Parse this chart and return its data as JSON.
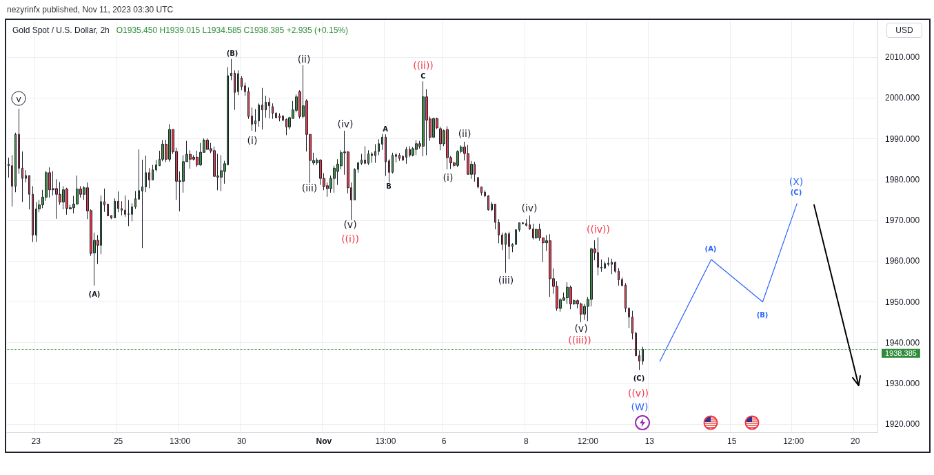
{
  "chart_data": {
    "type": "candlestick",
    "title": "Gold Spot / U.S. Dollar, 2h",
    "subtitle": "O1935.450 H1939.015 L1934.585 C1938.385 +2.935 (+0.15%)",
    "ylabel": "USD",
    "categories": [
      null,
      null,
      null,
      null,
      null,
      null,
      null,
      null,
      "23",
      null,
      null,
      null,
      null,
      null,
      null,
      null,
      null,
      null,
      null,
      null,
      null,
      null,
      null,
      null,
      null,
      null,
      null,
      null,
      null,
      null,
      null,
      null,
      "25",
      null,
      null,
      null,
      null,
      null,
      null,
      null,
      null,
      null,
      null,
      null,
      null,
      null,
      null,
      null,
      null,
      null,
      "13:00",
      null,
      null,
      null,
      null,
      null,
      null,
      null,
      null,
      null,
      null,
      null,
      null,
      null,
      null,
      null,
      null,
      null,
      "30",
      null,
      null,
      null,
      null,
      null,
      null,
      null,
      null,
      null,
      null,
      null,
      null,
      null,
      null,
      null,
      null,
      null,
      null,
      null,
      null,
      null,
      null,
      null,
      "Nov",
      null,
      null,
      null,
      null,
      null,
      null,
      null,
      null,
      null,
      null,
      null,
      null,
      null,
      null,
      null,
      null,
      null,
      "13:00",
      null,
      null,
      null,
      null,
      null,
      null,
      null,
      null,
      null,
      null,
      null,
      null,
      null,
      null,
      null,
      null,
      "6",
      null,
      null,
      null,
      null,
      null,
      null,
      null,
      null,
      null,
      null,
      null,
      null,
      null,
      null,
      null,
      null,
      null,
      null,
      null,
      null,
      null,
      null,
      null,
      "8",
      null,
      null,
      null,
      null,
      null,
      null,
      null,
      null,
      null,
      null,
      null,
      null,
      null,
      null,
      null,
      null,
      null,
      "12:00",
      null,
      null,
      null,
      null,
      null,
      null,
      null,
      null,
      null,
      null,
      null,
      null,
      null,
      null,
      null,
      null,
      null,
      "13",
      null,
      null,
      null,
      null,
      null,
      null,
      null,
      null,
      null,
      null,
      null,
      null,
      null,
      null,
      null,
      null,
      null,
      null,
      null,
      null,
      null,
      null,
      null,
      "15",
      null,
      null,
      null,
      null,
      null,
      null,
      null,
      null,
      null,
      null,
      null,
      null,
      null,
      null,
      null,
      null,
      null,
      "12:00",
      null,
      null,
      null,
      null,
      null,
      null,
      null,
      null,
      null,
      null,
      null,
      null,
      null,
      null,
      null,
      null,
      null,
      "20",
      null,
      null,
      null,
      null,
      null,
      null
    ],
    "ohlc": [
      [
        1983.8,
        1985.4,
        1980.5,
        1983.4
      ],
      [
        1983.4,
        1986.0,
        1973.4,
        1978.4
      ],
      [
        1978.4,
        1991.5,
        1976.9,
        1991.1
      ],
      [
        1991.1,
        1997.4,
        1981.4,
        1982.8
      ],
      [
        1982.8,
        1986.9,
        1974.5,
        1980.3
      ],
      [
        1980.3,
        1982.3,
        1979.3,
        1981.0
      ],
      [
        1981.0,
        1981.0,
        1972.7,
        1976.4
      ],
      [
        1976.4,
        1978.4,
        1964.7,
        1966.4
      ],
      [
        1966.4,
        1974.5,
        1964.7,
        1972.8
      ],
      [
        1972.8,
        1975.0,
        1972.0,
        1973.8
      ],
      [
        1973.8,
        1977.5,
        1973.0,
        1975.7
      ],
      [
        1975.7,
        1982.1,
        1974.8,
        1981.7
      ],
      [
        1981.7,
        1983.0,
        1975.6,
        1977.5
      ],
      [
        1977.8,
        1982.1,
        1976.1,
        1977.5
      ],
      [
        1977.8,
        1980.1,
        1970.4,
        1976.4
      ],
      [
        1976.4,
        1979.4,
        1973.8,
        1974.5
      ],
      [
        1974.5,
        1978.4,
        1972.7,
        1977.5
      ],
      [
        1977.7,
        1978.0,
        1971.4,
        1972.9
      ],
      [
        1972.8,
        1973.8,
        1972.7,
        1973.1
      ],
      [
        1973.1,
        1976.0,
        1971.7,
        1974.0
      ],
      [
        1974.0,
        1981.0,
        1974.0,
        1977.7
      ],
      [
        1977.7,
        1978.4,
        1975.6,
        1976.4
      ],
      [
        1976.4,
        1978.4,
        1975.0,
        1978.0
      ],
      [
        1978.0,
        1979.3,
        1970.3,
        1972.3
      ],
      [
        1972.4,
        1972.7,
        1961.3,
        1961.9
      ],
      [
        1962.0,
        1967.0,
        1954.0,
        1965.1
      ],
      [
        1965.1,
        1966.4,
        1959.3,
        1963.9
      ],
      [
        1963.9,
        1976.1,
        1961.7,
        1974.6
      ],
      [
        1974.6,
        1977.8,
        1972.1,
        1973.8
      ],
      [
        1974.0,
        1974.0,
        1971.1,
        1971.1
      ],
      [
        1971.2,
        1971.2,
        1970.3,
        1970.6
      ],
      [
        1970.6,
        1975.4,
        1970.6,
        1974.7
      ],
      [
        1974.7,
        1977.1,
        1972.0,
        1972.9
      ],
      [
        1972.9,
        1974.7,
        1971.2,
        1972.5
      ],
      [
        1972.5,
        1976.1,
        1970.9,
        1971.5
      ],
      [
        1971.6,
        1975.0,
        1968.6,
        1971.5
      ],
      [
        1971.5,
        1974.2,
        1969.8,
        1973.3
      ],
      [
        1973.3,
        1977.2,
        1972.8,
        1975.3
      ],
      [
        1975.2,
        1987.4,
        1975.2,
        1977.3
      ],
      [
        1977.2,
        1984.9,
        1963.2,
        1978.2
      ],
      [
        1978.2,
        1985.9,
        1976.9,
        1981.7
      ],
      [
        1981.7,
        1982.8,
        1977.9,
        1979.9
      ],
      [
        1979.9,
        1983.6,
        1979.9,
        1982.4
      ],
      [
        1982.4,
        1984.8,
        1982.0,
        1983.6
      ],
      [
        1983.4,
        1987.1,
        1983.4,
        1985.0
      ],
      [
        1985.0,
        1989.7,
        1984.5,
        1988.7
      ],
      [
        1988.7,
        1989.8,
        1984.3,
        1985.0
      ],
      [
        1985.0,
        1993.6,
        1984.4,
        1992.3
      ],
      [
        1992.3,
        1992.3,
        1986.3,
        1986.8
      ],
      [
        1986.9,
        1987.8,
        1975.0,
        1979.6
      ],
      [
        1979.7,
        1982.0,
        1972.2,
        1979.5
      ],
      [
        1979.6,
        1986.0,
        1976.8,
        1984.4
      ],
      [
        1984.4,
        1989.5,
        1984.4,
        1986.2
      ],
      [
        1986.2,
        1987.2,
        1982.7,
        1985.0
      ],
      [
        1985.5,
        1986.0,
        1984.7,
        1985.0
      ],
      [
        1985.5,
        1987.1,
        1983.1,
        1983.6
      ],
      [
        1983.6,
        1989.0,
        1983.4,
        1986.7
      ],
      [
        1986.7,
        1990.1,
        1986.6,
        1989.7
      ],
      [
        1989.7,
        1990.1,
        1987.4,
        1987.4
      ],
      [
        1987.6,
        1989.0,
        1986.5,
        1987.0
      ],
      [
        1987.1,
        1988.1,
        1980.8,
        1980.8
      ],
      [
        1980.9,
        1986.3,
        1977.4,
        1980.6
      ],
      [
        1980.6,
        1986.0,
        1977.2,
        1982.2
      ],
      [
        1982.0,
        1984.6,
        1979.0,
        1983.9
      ],
      [
        1983.6,
        2007.6,
        1983.6,
        2005.5
      ],
      [
        2005.5,
        2009.6,
        2004.4,
        2006.1
      ],
      [
        2006.1,
        2006.8,
        1997.1,
        2001.4
      ],
      [
        2001.6,
        2006.8,
        2000.7,
        2006.0
      ],
      [
        2004.9,
        2005.4,
        2001.9,
        2002.8
      ],
      [
        2003.0,
        2003.8,
        2000.6,
        2001.6
      ],
      [
        2001.6,
        2002.6,
        1994.9,
        1995.5
      ],
      [
        1995.6,
        1997.7,
        1992.0,
        1993.6
      ],
      [
        1993.7,
        1997.3,
        1991.7,
        1994.4
      ],
      [
        1994.4,
        1998.7,
        1993.0,
        1998.3
      ],
      [
        1998.3,
        2002.5,
        1992.3,
        1997.1
      ],
      [
        1997.1,
        2000.6,
        1995.2,
        1999.0
      ],
      [
        1999.0,
        2000.1,
        1995.0,
        1998.1
      ],
      [
        1997.9,
        1998.7,
        1994.9,
        1996.3
      ],
      [
        1996.3,
        1996.5,
        1995.0,
        1995.2
      ],
      [
        1995.6,
        1996.3,
        1994.3,
        1995.2
      ],
      [
        1995.6,
        1995.8,
        1994.3,
        1994.6
      ],
      [
        1994.8,
        1995.0,
        1990.9,
        1992.9
      ],
      [
        1992.9,
        1995.4,
        1992.3,
        1995.2
      ],
      [
        1995.0,
        1999.3,
        1995.0,
        1997.1
      ],
      [
        1997.0,
        2000.9,
        1996.5,
        2000.3
      ],
      [
        2001.6,
        2001.9,
        1995.0,
        1995.5
      ],
      [
        1995.5,
        2008.1,
        1995.0,
        1998.1
      ],
      [
        1999.3,
        1999.7,
        1986.9,
        1991.1
      ],
      [
        1991.1,
        1991.1,
        1979.1,
        1984.7
      ],
      [
        1984.1,
        1986.6,
        1983.6,
        1984.7
      ],
      [
        1984.1,
        1985.3,
        1983.6,
        1984.8
      ],
      [
        1984.8,
        1985.0,
        1978.7,
        1980.3
      ],
      [
        1980.3,
        1981.6,
        1977.4,
        1978.3
      ],
      [
        1978.5,
        1979.3,
        1975.8,
        1977.8
      ],
      [
        1977.8,
        1981.0,
        1976.8,
        1980.3
      ],
      [
        1980.3,
        1983.4,
        1976.8,
        1982.8
      ],
      [
        1982.0,
        1985.0,
        1978.7,
        1983.8
      ],
      [
        1983.4,
        1987.2,
        1982.5,
        1986.6
      ],
      [
        1986.6,
        1992.0,
        1981.2,
        1986.8
      ],
      [
        1986.8,
        1987.0,
        1976.6,
        1978.0
      ],
      [
        1978.0,
        1979.3,
        1970.1,
        1975.0
      ],
      [
        1975.0,
        1982.8,
        1975.0,
        1982.5
      ],
      [
        1982.5,
        1984.4,
        1981.7,
        1984.1
      ],
      [
        1984.0,
        1986.3,
        1983.6,
        1984.8
      ],
      [
        1984.8,
        1988.2,
        1983.8,
        1984.0
      ],
      [
        1984.0,
        1987.2,
        1983.6,
        1986.3
      ],
      [
        1986.3,
        1986.7,
        1984.1,
        1985.9
      ],
      [
        1985.9,
        1988.7,
        1984.1,
        1986.9
      ],
      [
        1986.9,
        1989.9,
        1986.0,
        1988.8
      ],
      [
        1988.7,
        1991.2,
        1987.3,
        1990.4
      ],
      [
        1990.4,
        1991.1,
        1980.9,
        1984.4
      ],
      [
        1984.6,
        1985.0,
        1979.3,
        1981.8
      ],
      [
        1981.8,
        1986.6,
        1981.5,
        1986.0
      ],
      [
        1985.7,
        1986.5,
        1984.2,
        1986.1
      ],
      [
        1986.0,
        1986.5,
        1984.6,
        1985.2
      ],
      [
        1985.7,
        1986.0,
        1984.6,
        1984.8
      ],
      [
        1985.5,
        1988.0,
        1983.9,
        1987.4
      ],
      [
        1987.4,
        1988.2,
        1985.5,
        1986.0
      ],
      [
        1986.0,
        1988.0,
        1985.7,
        1987.6
      ],
      [
        1987.4,
        1989.7,
        1986.0,
        1988.8
      ],
      [
        1988.8,
        1989.5,
        1987.6,
        1988.2
      ],
      [
        1988.2,
        2004.1,
        1985.7,
        2000.3
      ],
      [
        2000.3,
        2002.2,
        1986.0,
        1994.6
      ],
      [
        1994.9,
        1995.5,
        1989.5,
        1990.4
      ],
      [
        1990.4,
        1995.2,
        1990.3,
        1995.0
      ],
      [
        1995.0,
        1995.2,
        1992.4,
        1992.7
      ],
      [
        1992.5,
        1993.0,
        1987.2,
        1988.8
      ],
      [
        1988.8,
        1992.3,
        1988.2,
        1992.0
      ],
      [
        1992.3,
        1993.1,
        1982.5,
        1985.4
      ],
      [
        1985.4,
        1985.8,
        1982.6,
        1984.1
      ],
      [
        1984.1,
        1984.4,
        1983.1,
        1983.5
      ],
      [
        1983.5,
        1987.2,
        1983.1,
        1986.9
      ],
      [
        1986.9,
        1988.4,
        1986.5,
        1988.0
      ],
      [
        1988.0,
        1989.3,
        1984.7,
        1986.4
      ],
      [
        1986.4,
        1988.5,
        1981.3,
        1981.3
      ],
      [
        1981.3,
        1984.6,
        1980.2,
        1983.8
      ],
      [
        1983.8,
        1984.4,
        1979.5,
        1981.3
      ],
      [
        1980.5,
        1980.6,
        1977.8,
        1978.2
      ],
      [
        1978.2,
        1978.2,
        1976.1,
        1976.8
      ],
      [
        1976.9,
        1977.4,
        1975.7,
        1976.0
      ],
      [
        1976.0,
        1976.2,
        1972.4,
        1972.6
      ],
      [
        1972.6,
        1974.5,
        1972.3,
        1974.0
      ],
      [
        1974.0,
        1974.0,
        1967.8,
        1969.5
      ],
      [
        1969.5,
        1970.3,
        1964.4,
        1966.4
      ],
      [
        1966.4,
        1967.0,
        1962.7,
        1964.1
      ],
      [
        1964.1,
        1967.0,
        1957.1,
        1966.7
      ],
      [
        1966.7,
        1967.2,
        1960.5,
        1963.6
      ],
      [
        1963.6,
        1964.4,
        1962.2,
        1964.1
      ],
      [
        1964.1,
        1967.8,
        1964.0,
        1967.7
      ],
      [
        1967.7,
        1969.5,
        1967.2,
        1969.4
      ],
      [
        1969.2,
        1969.6,
        1969.0,
        1969.4
      ],
      [
        1969.2,
        1970.3,
        1968.5,
        1968.8
      ],
      [
        1968.9,
        1971.2,
        1967.7,
        1967.9
      ],
      [
        1967.9,
        1969.2,
        1965.3,
        1965.7
      ],
      [
        1965.7,
        1967.9,
        1965.5,
        1967.8
      ],
      [
        1967.8,
        1969.2,
        1965.0,
        1965.7
      ],
      [
        1965.7,
        1965.7,
        1959.8,
        1964.5
      ],
      [
        1964.5,
        1966.4,
        1962.5,
        1965.0
      ],
      [
        1965.0,
        1966.6,
        1951.2,
        1955.7
      ],
      [
        1955.7,
        1958.2,
        1952.0,
        1953.8
      ],
      [
        1953.8,
        1955.1,
        1947.8,
        1948.4
      ],
      [
        1948.4,
        1950.9,
        1947.6,
        1950.5
      ],
      [
        1950.4,
        1952.3,
        1950.4,
        1951.0
      ],
      [
        1951.0,
        1954.8,
        1949.5,
        1953.6
      ],
      [
        1953.6,
        1954.0,
        1948.2,
        1949.5
      ],
      [
        1949.5,
        1950.6,
        1949.3,
        1950.3
      ],
      [
        1950.3,
        1950.6,
        1948.4,
        1949.5
      ],
      [
        1949.5,
        1949.8,
        1945.0,
        1947.0
      ],
      [
        1947.0,
        1949.5,
        1945.6,
        1948.9
      ],
      [
        1948.9,
        1951.2,
        1945.3,
        1950.6
      ],
      [
        1950.6,
        1963.3,
        1948.9,
        1963.0
      ],
      [
        1963.0,
        1965.1,
        1960.2,
        1962.1
      ],
      [
        1962.1,
        1965.8,
        1956.5,
        1958.5
      ],
      [
        1958.5,
        1960.4,
        1957.4,
        1958.3
      ],
      [
        1958.3,
        1959.9,
        1958.1,
        1959.4
      ],
      [
        1959.5,
        1960.9,
        1958.8,
        1959.2
      ],
      [
        1959.2,
        1960.6,
        1956.8,
        1959.7
      ],
      [
        1959.7,
        1959.9,
        1957.1,
        1957.5
      ],
      [
        1957.5,
        1958.3,
        1954.0,
        1955.4
      ],
      [
        1955.5,
        1956.0,
        1953.8,
        1954.0
      ],
      [
        1954.1,
        1954.6,
        1947.5,
        1948.4
      ],
      [
        1948.4,
        1948.7,
        1943.6,
        1946.3
      ],
      [
        1946.3,
        1947.8,
        1940.8,
        1942.3
      ],
      [
        1942.3,
        1942.7,
        1936.8,
        1936.8
      ],
      [
        1936.8,
        1938.1,
        1933.3,
        1935.5
      ],
      [
        1935.45,
        1939.015,
        1934.585,
        1938.385
      ],
      null,
      null,
      null,
      null,
      null,
      null,
      null,
      null,
      null,
      null,
      null,
      null,
      null,
      null,
      null,
      null,
      null,
      null,
      null,
      null,
      null,
      null,
      null,
      null,
      null,
      null,
      null,
      null,
      null,
      null,
      null,
      null,
      null,
      null,
      null,
      null,
      null,
      null,
      null,
      null,
      null,
      null,
      null,
      null,
      null,
      null,
      null,
      null,
      null,
      null,
      null,
      null,
      null,
      null,
      null,
      null,
      null,
      null,
      null,
      null,
      null,
      null,
      null,
      null,
      null,
      null,
      null,
      null
    ],
    "series": [
      {
        "type": "line",
        "color": "#2962ff",
        "values": [
          null,
          null,
          null,
          null,
          null,
          null,
          null,
          null,
          null,
          null,
          null,
          null,
          null,
          null,
          null,
          null,
          null,
          null,
          null,
          null,
          null,
          null,
          null,
          null,
          null,
          null,
          null,
          null,
          null,
          null,
          null,
          null,
          null,
          null,
          null,
          null,
          null,
          null,
          null,
          null,
          null,
          null,
          null,
          null,
          null,
          null,
          null,
          null,
          null,
          null,
          null,
          null,
          null,
          null,
          null,
          null,
          null,
          null,
          null,
          null,
          null,
          null,
          null,
          null,
          null,
          null,
          null,
          null,
          null,
          null,
          null,
          null,
          null,
          null,
          null,
          null,
          null,
          null,
          null,
          null,
          null,
          null,
          null,
          null,
          null,
          null,
          null,
          null,
          null,
          null,
          null,
          null,
          null,
          null,
          null,
          null,
          null,
          null,
          null,
          null,
          null,
          null,
          null,
          null,
          null,
          null,
          null,
          null,
          null,
          null,
          null,
          null,
          null,
          null,
          null,
          null,
          null,
          null,
          null,
          null,
          null,
          null,
          null,
          null,
          null,
          null,
          null,
          null,
          null,
          null,
          null,
          null,
          null,
          null,
          null,
          null,
          null,
          null,
          null,
          null,
          null,
          null,
          null,
          null,
          null,
          null,
          null,
          null,
          null,
          null,
          null,
          null,
          null,
          null,
          null,
          null,
          null,
          null,
          null,
          null,
          null,
          null,
          null,
          null,
          null,
          null,
          null,
          null,
          null,
          null,
          null,
          null,
          null,
          null,
          null,
          null,
          null,
          null,
          null,
          null,
          null,
          null,
          null,
          null,
          null,
          null,
          null,
          null,
          null,
          null,
          1935.4,
          null,
          null,
          null,
          null,
          null,
          null,
          null,
          null,
          null,
          null,
          null,
          null,
          null,
          null,
          1960.4,
          null,
          null,
          null,
          null,
          null,
          null,
          null,
          null,
          null,
          null,
          null,
          null,
          null,
          null,
          1950.0,
          null,
          null,
          null,
          null,
          null,
          null,
          null,
          null,
          null,
          1974.1,
          null,
          null,
          null,
          null,
          null,
          null,
          null,
          null,
          null,
          null,
          null,
          null,
          null,
          null,
          null,
          null,
          null,
          null,
          null,
          null,
          null,
          null,
          null
        ]
      },
      {
        "type": "line",
        "color": "#000000",
        "values": [
          null,
          null,
          null,
          null,
          null,
          null,
          null,
          null,
          null,
          null,
          null,
          null,
          null,
          null,
          null,
          null,
          null,
          null,
          null,
          null,
          null,
          null,
          null,
          null,
          null,
          null,
          null,
          null,
          null,
          null,
          null,
          null,
          null,
          null,
          null,
          null,
          null,
          null,
          null,
          null,
          null,
          null,
          null,
          null,
          null,
          null,
          null,
          null,
          null,
          null,
          null,
          null,
          null,
          null,
          null,
          null,
          null,
          null,
          null,
          null,
          null,
          null,
          null,
          null,
          null,
          null,
          null,
          null,
          null,
          null,
          null,
          null,
          null,
          null,
          null,
          null,
          null,
          null,
          null,
          null,
          null,
          null,
          null,
          null,
          null,
          null,
          null,
          null,
          null,
          null,
          null,
          null,
          null,
          null,
          null,
          null,
          null,
          null,
          null,
          null,
          null,
          null,
          null,
          null,
          null,
          null,
          null,
          null,
          null,
          null,
          null,
          null,
          null,
          null,
          null,
          null,
          null,
          null,
          null,
          null,
          null,
          null,
          null,
          null,
          null,
          null,
          null,
          null,
          null,
          null,
          null,
          null,
          null,
          null,
          null,
          null,
          null,
          null,
          null,
          null,
          null,
          null,
          null,
          null,
          null,
          null,
          null,
          null,
          null,
          null,
          null,
          null,
          null,
          null,
          null,
          null,
          null,
          null,
          null,
          null,
          null,
          null,
          null,
          null,
          null,
          null,
          null,
          null,
          null,
          null,
          null,
          null,
          null,
          null,
          null,
          null,
          null,
          null,
          null,
          null,
          null,
          null,
          null,
          null,
          null,
          null,
          null,
          null,
          null,
          null,
          null,
          null,
          null,
          null,
          null,
          null,
          null,
          null,
          null,
          null,
          null,
          null,
          null,
          null,
          null,
          null,
          null,
          null,
          null,
          null,
          null,
          null,
          null,
          null,
          null,
          null,
          null,
          null,
          null,
          null,
          null,
          null,
          null,
          null,
          null,
          null,
          null,
          null,
          null,
          null,
          null,
          null,
          null,
          null,
          null,
          1973.8,
          null,
          null,
          null,
          null,
          null,
          null,
          null,
          null,
          null,
          null,
          null,
          null,
          1929.5,
          null,
          null,
          null,
          null,
          null
        ]
      }
    ],
    "ylim": [
      1918,
      2019
    ],
    "yticks": [
      {
        "value": 1920,
        "label": "1920.000"
      },
      {
        "value": 1930,
        "label": "1930.000"
      },
      {
        "value": 1940,
        "label": "1940.000"
      },
      {
        "value": 1950,
        "label": "1950.000"
      },
      {
        "value": 1960,
        "label": "1960.000"
      },
      {
        "value": 1970,
        "label": "1970.000"
      },
      {
        "value": 1980,
        "label": "1980.000"
      },
      {
        "value": 1990,
        "label": "1990.000"
      },
      {
        "value": 2000,
        "label": "2000.000"
      },
      {
        "value": 2010,
        "label": "2010.000"
      }
    ],
    "ref_lines": [
      {
        "axis": "y",
        "value": 1938.385,
        "label": "1938.385",
        "color": "#2e8b3a",
        "line_style": "dotted"
      }
    ],
    "grid": true,
    "annotations": [
      "nezyrinfx published, Nov 11, 2023 03:30 UTC",
      "v",
      "(B)",
      "(ii)",
      "((ii))",
      "C",
      "(i)",
      "(iv)",
      "A",
      "(ii)",
      "(iii)",
      "B",
      "(i)",
      "(v)",
      "((i))",
      "(iv)",
      "((iv))",
      "(iii)",
      "(A)",
      "(v)",
      "((iii))",
      "(C)",
      "((v))",
      "(W)",
      "(A)",
      "(B)",
      "(X)",
      "(C)"
    ]
  }
}
